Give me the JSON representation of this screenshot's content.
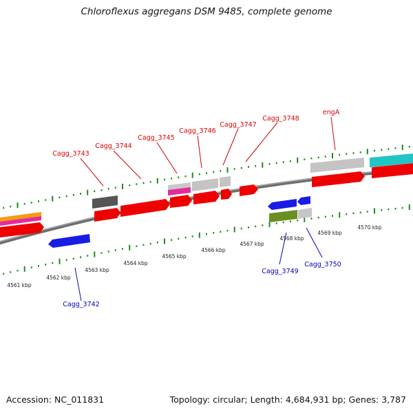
{
  "title": "Chloroflexus aggregans DSM 9485, complete genome",
  "footer": {
    "accession": "Accession: NC_011831",
    "topology": "Topology: circular; Length: 4,684,931 bp; Genes: 3,787"
  },
  "colors": {
    "backbone": "#777777",
    "tick": "#1a8a1a",
    "forward_label": "#dd0000",
    "reverse_label": "#0000bb"
  },
  "scale_labels": [
    "4561 kbp",
    "4562 kbp",
    "4563 kbp",
    "4564 kbp",
    "4565 kbp",
    "4566 kbp",
    "4567 kbp",
    "4568 kbp",
    "4569 kbp",
    "4570 kbp"
  ],
  "genes": [
    {
      "name": "Cagg_3743",
      "strand": "forward"
    },
    {
      "name": "Cagg_3744",
      "strand": "forward"
    },
    {
      "name": "Cagg_3745",
      "strand": "forward"
    },
    {
      "name": "Cagg_3746",
      "strand": "forward"
    },
    {
      "name": "Cagg_3747",
      "strand": "forward"
    },
    {
      "name": "Cagg_3748",
      "strand": "forward"
    },
    {
      "name": "engA",
      "strand": "forward"
    },
    {
      "name": "Cagg_3749",
      "strand": "reverse"
    },
    {
      "name": "Cagg_3750",
      "strand": "reverse"
    },
    {
      "name": "Cagg_3742",
      "strand": "reverse"
    }
  ]
}
